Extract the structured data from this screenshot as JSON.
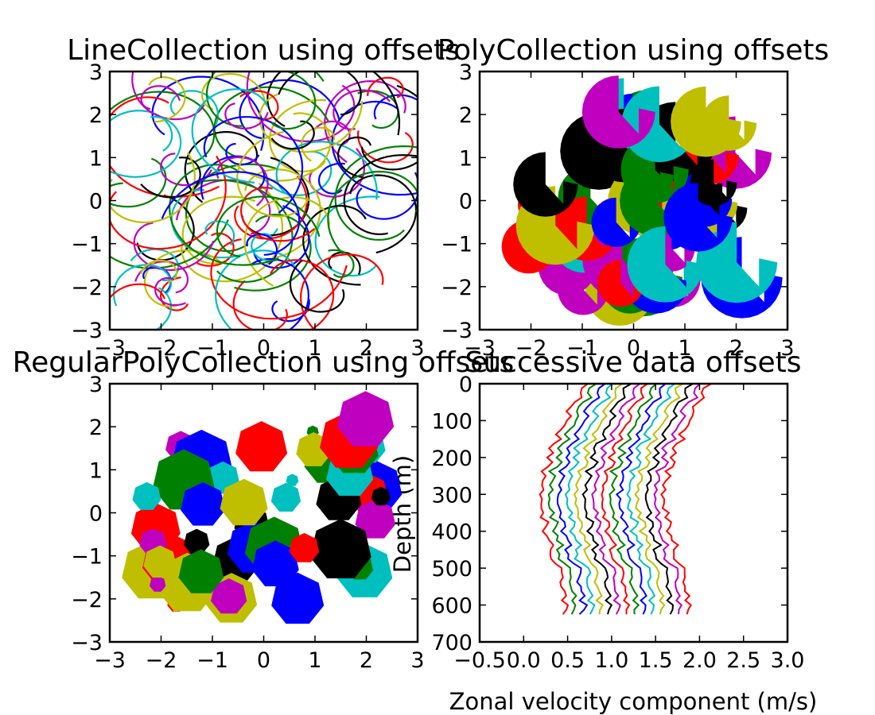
{
  "palette": [
    "#0000ff",
    "#008000",
    "#ff0000",
    "#00bfbf",
    "#bf00bf",
    "#bfbf00",
    "#000000"
  ],
  "chart_data": [
    {
      "id": "line",
      "type": "line",
      "title": "LineCollection using offsets",
      "xlim": [
        -3,
        3
      ],
      "ylim": [
        -3,
        3
      ],
      "xticks": [
        -3,
        -2,
        -1,
        0,
        1,
        2,
        3
      ],
      "yticks": [
        -3,
        -2,
        -1,
        0,
        1,
        2,
        3
      ],
      "xticklabels": [
        "−3",
        "−2",
        "−1",
        "0",
        "1",
        "2",
        "3"
      ],
      "yticklabels": [
        "−3",
        "−2",
        "−1",
        "0",
        "1",
        "2",
        "3"
      ],
      "xlabel": "",
      "ylabel": "",
      "n_curves": 100
    },
    {
      "id": "poly",
      "type": "scatter",
      "title": "PolyCollection using offsets",
      "xlim": [
        -3,
        3
      ],
      "ylim": [
        -3,
        3
      ],
      "xticks": [
        -3,
        -2,
        -1,
        0,
        1,
        2,
        3
      ],
      "yticks": [
        -3,
        -2,
        -1,
        0,
        1,
        2,
        3
      ],
      "xticklabels": [
        "−3",
        "−2",
        "−1",
        "0",
        "1",
        "2",
        "3"
      ],
      "yticklabels": [
        "−3",
        "−2",
        "−1",
        "0",
        "1",
        "2",
        "3"
      ],
      "xlabel": "",
      "ylabel": "",
      "n_shapes": 50
    },
    {
      "id": "regpoly",
      "type": "scatter",
      "title": "RegularPolyCollection using offsets",
      "xlim": [
        -3,
        3
      ],
      "ylim": [
        -3,
        3
      ],
      "xticks": [
        -3,
        -2,
        -1,
        0,
        1,
        2,
        3
      ],
      "yticks": [
        -3,
        -2,
        -1,
        0,
        1,
        2,
        3
      ],
      "xticklabels": [
        "−3",
        "−2",
        "−1",
        "0",
        "1",
        "2",
        "3"
      ],
      "yticklabels": [
        "−3",
        "−2",
        "−1",
        "0",
        "1",
        "2",
        "3"
      ],
      "xlabel": "",
      "ylabel": "",
      "n_shapes": 50
    },
    {
      "id": "offsets",
      "type": "line",
      "title": "Successive data offsets",
      "xlim": [
        -0.5,
        3.0
      ],
      "ylim": [
        700,
        0
      ],
      "xticks": [
        -0.5,
        0.0,
        0.5,
        1.0,
        1.5,
        2.0,
        2.5,
        3.0
      ],
      "yticks": [
        0,
        100,
        200,
        300,
        400,
        500,
        600,
        700
      ],
      "xticklabels": [
        "−0.5",
        "0.0",
        "0.5",
        "1.0",
        "1.5",
        "2.0",
        "2.5",
        "3.0"
      ],
      "yticklabels": [
        "0",
        "100",
        "200",
        "300",
        "400",
        "500",
        "600",
        "700"
      ],
      "xlabel": "Zonal velocity component (m/s)",
      "ylabel": "Depth (m)",
      "n_series": 15,
      "series_offset": 0.1,
      "depth_range": [
        0,
        625
      ]
    }
  ]
}
